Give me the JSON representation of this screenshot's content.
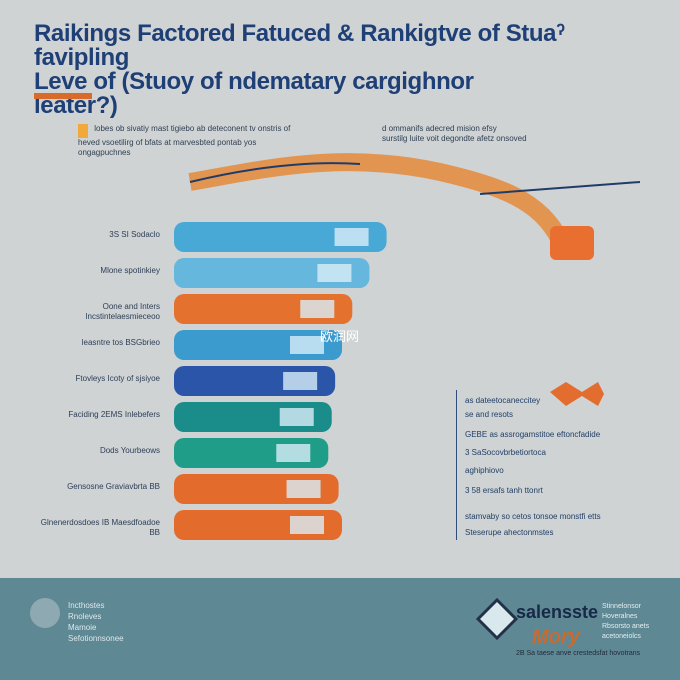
{
  "title": {
    "line1": "Raikings Factored Fatuced & Rankigtve of Stuaˀ favipling",
    "line2": "Leve of (Stuoy of ndematary cargighnor",
    "line3": "leater?)"
  },
  "notes": {
    "left": [
      "lobes ob sivatiy mast tigiebo ab deteconent tv onstris of",
      "heved vsoetilirg of bfats at marvesbted pontab yos",
      "ongagpuchnes"
    ],
    "right": [
      "d ommanifs adecred mision efsy",
      "surstilg luite voit degondte afetz onsoved"
    ]
  },
  "chart_data": {
    "type": "bar",
    "orientation": "horizontal",
    "categories": [
      "3S SI Sodaclo",
      "Mlone spotinkiey",
      "Oone and Inters Incstintelaesmieceoo",
      "leasntre tos BSGbrieo",
      "Ftovleys Icoty of sjsiyoe",
      "Faciding 2EMS Inlebefers",
      "Dods Yourbeows",
      "Gensosne Graviavbrta BB",
      "Glnenerdosdoes IB Maesdfoadoe BB"
    ],
    "values": [
      62,
      57,
      52,
      49,
      47,
      46,
      45,
      48,
      49
    ],
    "colors": [
      "#49a9d6",
      "#65b7dd",
      "#e4722e",
      "#3b9bcf",
      "#2b55a8",
      "#1a8c8a",
      "#1f9d88",
      "#e36c2c",
      "#e36c2c"
    ],
    "accent": "#f2b13c",
    "xlim": [
      0,
      70
    ]
  },
  "legend": {
    "rows": [
      "as dateetocaneccitey",
      "se and resots",
      "GEBE as assrogamstitoe eftoncfadide",
      "3 SaSocovbrbetiortoca",
      "aghiphiovo",
      "3 58 ersafs tanh ttonrt",
      "stamvaby so cetos tonsoe monstfi etts",
      "Steserupe ahectonmstes"
    ]
  },
  "footer": {
    "left_text": [
      "Incthostes",
      "Rnoleves",
      "Mamoie",
      "Sefotionnsonee"
    ],
    "brand": "salensste",
    "brand2": "Mory",
    "right_text": [
      "Stinnelonsor",
      "Hoveralnes",
      "Rbsorsto anets",
      "acetoneiolcs"
    ],
    "bottom": "2B Sa taese anve crestedsfat hovotrans"
  },
  "watermark": "欧润网"
}
